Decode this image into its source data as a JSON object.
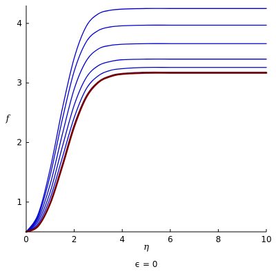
{
  "chart_data": {
    "type": "line",
    "xlabel": "η",
    "ylabel": "f",
    "caption": "ϵ = 0",
    "xlim": [
      0,
      10
    ],
    "ylim": [
      0.5,
      4.3
    ],
    "xticks": [
      0,
      2,
      4,
      6,
      8,
      10
    ],
    "yticks": [
      1,
      2,
      3,
      4
    ],
    "grid": false,
    "legend": "none",
    "x": [
      0,
      0.5,
      1,
      1.5,
      2,
      2.5,
      3,
      3.5,
      4,
      5,
      6,
      7,
      8,
      9,
      10
    ],
    "series": [
      {
        "color": "#0000cc",
        "width": 1.3,
        "values": [
          0.5,
          0.8,
          1.56,
          2.56,
          3.42,
          3.95,
          4.16,
          4.22,
          4.24,
          4.25,
          4.25,
          4.25,
          4.25,
          4.25,
          4.25
        ]
      },
      {
        "color": "#0000cc",
        "width": 1.3,
        "values": [
          0.5,
          0.76,
          1.45,
          2.38,
          3.2,
          3.69,
          3.88,
          3.94,
          3.96,
          3.97,
          3.97,
          3.97,
          3.97,
          3.97,
          3.97
        ]
      },
      {
        "color": "#0000cc",
        "width": 1.3,
        "values": [
          0.5,
          0.72,
          1.3,
          2.13,
          2.9,
          3.37,
          3.57,
          3.63,
          3.65,
          3.66,
          3.66,
          3.66,
          3.66,
          3.66,
          3.66
        ]
      },
      {
        "color": "#0000cc",
        "width": 1.3,
        "values": [
          0.5,
          0.68,
          1.17,
          1.92,
          2.63,
          3.09,
          3.29,
          3.36,
          3.39,
          3.4,
          3.4,
          3.4,
          3.4,
          3.4,
          3.4
        ]
      },
      {
        "color": "#0000cc",
        "width": 1.3,
        "values": [
          0.5,
          0.64,
          1.07,
          1.74,
          2.42,
          2.9,
          3.12,
          3.21,
          3.24,
          3.26,
          3.26,
          3.26,
          3.26,
          3.26,
          3.26
        ]
      },
      {
        "color": "#0000cc",
        "width": 1.3,
        "values": [
          0.5,
          0.61,
          1.0,
          1.63,
          2.3,
          2.78,
          3.02,
          3.12,
          3.16,
          3.18,
          3.18,
          3.18,
          3.18,
          3.18,
          3.18
        ]
      },
      {
        "color": "#7a0000",
        "width": 2.6,
        "values": [
          0.5,
          0.6,
          0.98,
          1.6,
          2.27,
          2.76,
          3.01,
          3.11,
          3.15,
          3.17,
          3.17,
          3.17,
          3.17,
          3.17,
          3.17
        ]
      }
    ]
  }
}
